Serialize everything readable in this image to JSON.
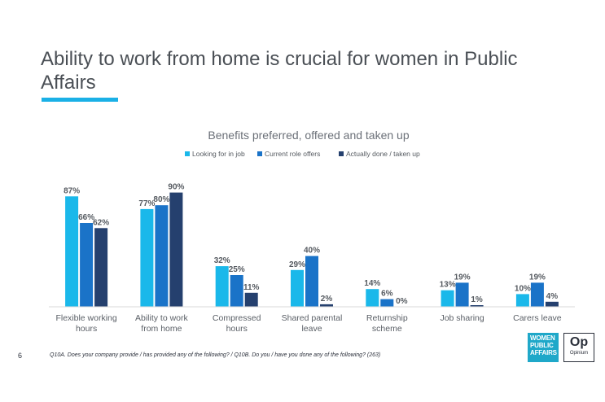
{
  "page": {
    "title": "Ability to work from home is crucial for women in Public Affairs",
    "page_number": "6",
    "footnote": "Q10A. Does your company provide / has provided any of the following? / Q10B. Do you / have you done any of the following? (263)",
    "logos": {
      "wpa_lines": [
        "WOMEN",
        "PUBLIC",
        "AFFAIRS"
      ],
      "op_mark": "Op",
      "op_word": "Opinium"
    }
  },
  "chart_data": {
    "type": "bar",
    "title": "Benefits preferred, offered and taken up",
    "ylim": [
      0,
      100
    ],
    "grid": false,
    "legend_position": "top",
    "categories": [
      [
        "Flexible working",
        "hours"
      ],
      [
        "Ability to work",
        "from home"
      ],
      [
        "Compressed",
        "hours"
      ],
      [
        "Shared parental",
        "leave"
      ],
      [
        "Returnship",
        "scheme"
      ],
      [
        "Job sharing"
      ],
      [
        "Carers leave"
      ]
    ],
    "series": [
      {
        "name": "Looking for in job",
        "color": "#1ab8ea",
        "values": [
          87,
          77,
          32,
          29,
          14,
          13,
          10
        ]
      },
      {
        "name": "Current role offers",
        "color": "#1a73c8",
        "values": [
          66,
          80,
          25,
          40,
          6,
          19,
          19
        ]
      },
      {
        "name": "Actually done / taken up",
        "color": "#25406e",
        "values": [
          62,
          90,
          11,
          2,
          0,
          1,
          4
        ]
      }
    ],
    "value_suffix": "%"
  }
}
